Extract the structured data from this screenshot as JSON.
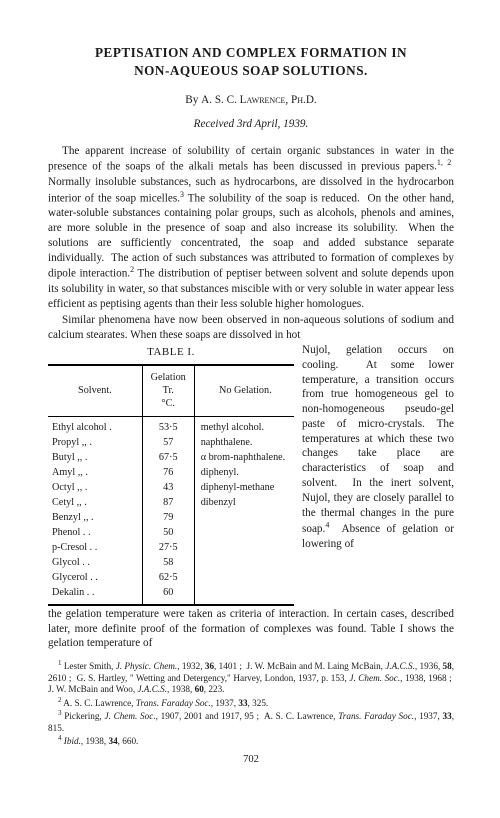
{
  "title_line1": "PEPTISATION AND COMPLEX FORMATION IN",
  "title_line2": "NON-AQUEOUS SOAP SOLUTIONS.",
  "author_prefix": "By ",
  "author_name": "A. S. C. Lawrence, Ph.D.",
  "received": "Received 3rd April, 1939.",
  "para1": "The apparent increase of solubility of certain organic substances in water in the presence of the soaps of the alkali metals has been discussed in previous papers.1, 2  Normally insoluble substances, such as hydrocarbons, are dissolved in the hydrocarbon interior of the soap micelles.3 The solubility of the soap is reduced.  On the other hand, water-soluble substances containing polar groups, such as alcohols, phenols and amines, are more soluble in the presence of soap and also increase its solubility.  When the solutions are sufficiently concentrated, the soap and added substance separate individually.  The action of such substances was attributed to formation of complexes by dipole interaction.2 The distribution of peptiser between solvent and solute depends upon its solubility in water, so that substances miscible with or very soluble in water appear less efficient as peptising agents than their less soluble higher homologues.",
  "para2_lead": "Similar phenomena have now been observed in non-aqueous solutions of sodium and calcium stearates.  When these soaps are dissolved in hot",
  "table_caption": "TABLE I.",
  "table_headers": {
    "solvent": "Solvent.",
    "gelation": "Gelation Tr.\n°C.",
    "nogel": "No Gelation."
  },
  "table_rows": [
    {
      "s": "Ethyl alcohol .",
      "t": "53·5",
      "n": "methyl alcohol."
    },
    {
      "s": "Propyl    ,,     .",
      "t": "57",
      "n": "naphthalene."
    },
    {
      "s": "Butyl      ,,     .",
      "t": "67·5",
      "n": "α brom-naphthalene."
    },
    {
      "s": "Amyl       ,,     .",
      "t": "76",
      "n": "diphenyl."
    },
    {
      "s": "Octyl      ,,     .",
      "t": "43",
      "n": "diphenyl-methane"
    },
    {
      "s": "Cetyl      ,,     .",
      "t": "87",
      "n": "dibenzyl"
    },
    {
      "s": "Benzyl    ,,     .",
      "t": "79",
      "n": ""
    },
    {
      "s": "Phenol  .     .",
      "t": "50",
      "n": ""
    },
    {
      "s": "p-Cresol .    .",
      "t": "27·5",
      "n": ""
    },
    {
      "s": "Glycol   .     .",
      "t": "58",
      "n": ""
    },
    {
      "s": "Glycerol .    .",
      "t": "62·5",
      "n": ""
    },
    {
      "s": "Dekalin  .    .",
      "t": "60",
      "n": ""
    }
  ],
  "wraptext": "Nujol, gelation occurs on cooling.  At some lower temperature, a transition occurs from true homogeneous gel to non-homogeneous pseudo-gel paste of micro-crystals. The temperatures at which these two changes take place are characteristics of soap and solvent.  In the inert solvent, Nujol, they are closely parallel to the thermal changes in the pure soap.4  Absence of gelation or lowering of",
  "continuation": "the gelation temperature were taken as criteria of interaction.  In certain cases, described later, more definite proof of the formation of complexes was found.  Table I shows the gelation temperature of",
  "footnotes": {
    "f1": "1 Lester Smith, J. Physic. Chem., 1932, 36, 1401 ;  J. W. McBain and M. Laing McBain, J.A.C.S., 1936, 58, 2610 ;  G. S. Hartley, \" Wetting and Detergency,\" Harvey, London, 1937, p. 153, J. Chem. Soc., 1938, 1968 ;  J. W. McBain and Woo, J.A.C.S., 1938, 60, 223.",
    "f2": "2 A. S. C. Lawrence, Trans. Faraday Soc., 1937, 33, 325.",
    "f3": "3 Pickering, J. Chem. Soc., 1907, 2001 and 1917, 95 ;  A. S. C. Lawrence, Trans. Faraday Soc., 1937, 33, 815.",
    "f4": "4 Ibid., 1938, 34, 660."
  },
  "pagenum": "702"
}
